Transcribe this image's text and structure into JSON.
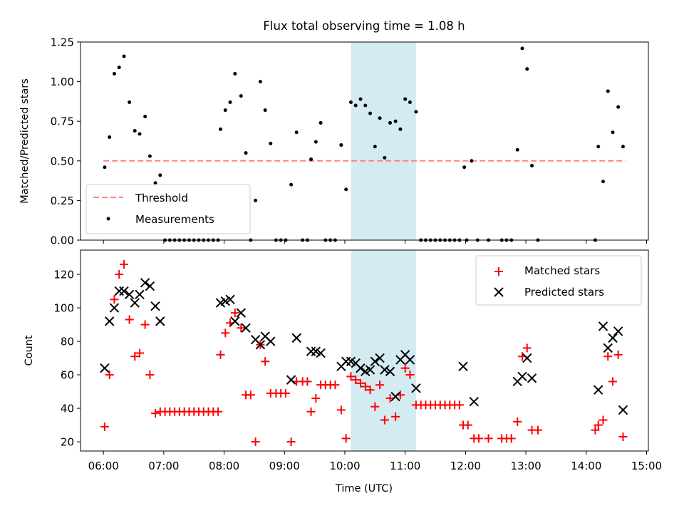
{
  "chart_data": [
    {
      "type": "scatter",
      "title": "Flux total observing time = 1.08 h",
      "xlabel": "",
      "ylabel": "Matched/Predicted stars",
      "xlim_hours": [
        5.62,
        15.03
      ],
      "ylim": [
        0,
        1.25
      ],
      "yticks": [
        0.0,
        0.25,
        0.5,
        0.75,
        1.0,
        1.25
      ],
      "ytick_labels": [
        "0.00",
        "0.25",
        "0.50",
        "0.75",
        "1.00",
        "1.25"
      ],
      "shaded_span_hours": [
        10.1,
        11.18
      ],
      "grid": false,
      "legend_position": "lower-left",
      "threshold": {
        "name": "Threshold",
        "color": "#ff8080",
        "value": 0.5,
        "x_hours": [
          6.0,
          14.65
        ]
      },
      "series": [
        {
          "name": "Measurements",
          "color": "#000000",
          "marker": "dot",
          "points": [
            [
              6.02,
              0.46
            ],
            [
              6.1,
              0.65
            ],
            [
              6.18,
              1.05
            ],
            [
              6.26,
              1.09
            ],
            [
              6.34,
              1.16
            ],
            [
              6.43,
              0.87
            ],
            [
              6.52,
              0.69
            ],
            [
              6.6,
              0.67
            ],
            [
              6.69,
              0.78
            ],
            [
              6.77,
              0.53
            ],
            [
              6.86,
              0.36
            ],
            [
              6.94,
              0.41
            ],
            [
              7.02,
              0.0
            ],
            [
              7.1,
              0.0
            ],
            [
              7.18,
              0.0
            ],
            [
              7.26,
              0.0
            ],
            [
              7.34,
              0.0
            ],
            [
              7.42,
              0.0
            ],
            [
              7.5,
              0.0
            ],
            [
              7.58,
              0.0
            ],
            [
              7.66,
              0.0
            ],
            [
              7.74,
              0.0
            ],
            [
              7.82,
              0.0
            ],
            [
              7.9,
              0.0
            ],
            [
              7.94,
              0.7
            ],
            [
              8.02,
              0.82
            ],
            [
              8.1,
              0.87
            ],
            [
              8.18,
              1.05
            ],
            [
              8.28,
              0.91
            ],
            [
              8.36,
              0.55
            ],
            [
              8.44,
              0.0
            ],
            [
              8.52,
              0.25
            ],
            [
              8.6,
              1.0
            ],
            [
              8.68,
              0.82
            ],
            [
              8.77,
              0.61
            ],
            [
              8.86,
              0.0
            ],
            [
              8.94,
              0.0
            ],
            [
              9.02,
              0.0
            ],
            [
              9.11,
              0.35
            ],
            [
              9.2,
              0.68
            ],
            [
              9.3,
              0.0
            ],
            [
              9.38,
              0.0
            ],
            [
              9.44,
              0.51
            ],
            [
              9.52,
              0.62
            ],
            [
              9.6,
              0.74
            ],
            [
              9.68,
              0.0
            ],
            [
              9.76,
              0.0
            ],
            [
              9.84,
              0.0
            ],
            [
              9.94,
              0.6
            ],
            [
              10.02,
              0.32
            ],
            [
              10.1,
              0.87
            ],
            [
              10.18,
              0.85
            ],
            [
              10.26,
              0.89
            ],
            [
              10.34,
              0.85
            ],
            [
              10.42,
              0.8
            ],
            [
              10.5,
              0.59
            ],
            [
              10.58,
              0.77
            ],
            [
              10.66,
              0.52
            ],
            [
              10.75,
              0.74
            ],
            [
              10.84,
              0.75
            ],
            [
              10.92,
              0.7
            ],
            [
              11.0,
              0.89
            ],
            [
              11.08,
              0.87
            ],
            [
              11.18,
              0.81
            ],
            [
              11.26,
              0.0
            ],
            [
              11.34,
              0.0
            ],
            [
              11.42,
              0.0
            ],
            [
              11.5,
              0.0
            ],
            [
              11.58,
              0.0
            ],
            [
              11.66,
              0.0
            ],
            [
              11.74,
              0.0
            ],
            [
              11.82,
              0.0
            ],
            [
              11.9,
              0.0
            ],
            [
              11.98,
              0.46
            ],
            [
              12.02,
              0.0
            ],
            [
              12.1,
              0.5
            ],
            [
              12.2,
              0.0
            ],
            [
              12.38,
              0.0
            ],
            [
              12.6,
              0.0
            ],
            [
              12.68,
              0.0
            ],
            [
              12.76,
              0.0
            ],
            [
              12.86,
              0.57
            ],
            [
              12.94,
              1.21
            ],
            [
              13.02,
              1.08
            ],
            [
              13.1,
              0.47
            ],
            [
              13.2,
              0.0
            ],
            [
              14.15,
              0.0
            ],
            [
              14.2,
              0.59
            ],
            [
              14.28,
              0.37
            ],
            [
              14.36,
              0.94
            ],
            [
              14.44,
              0.68
            ],
            [
              14.53,
              0.84
            ],
            [
              14.61,
              0.59
            ]
          ]
        }
      ]
    },
    {
      "type": "scatter",
      "title": "",
      "xlabel": "Time (UTC)",
      "ylabel": "Count",
      "xlim_hours": [
        5.62,
        15.03
      ],
      "ylim": [
        14.5,
        134.5
      ],
      "yticks": [
        20,
        40,
        60,
        80,
        100,
        120
      ],
      "ytick_labels": [
        "20",
        "40",
        "60",
        "80",
        "100",
        "120"
      ],
      "xticks_hours": [
        6,
        7,
        8,
        9,
        10,
        11,
        12,
        13,
        14,
        15
      ],
      "xtick_labels": [
        "06:00",
        "07:00",
        "08:00",
        "09:00",
        "10:00",
        "11:00",
        "12:00",
        "13:00",
        "14:00",
        "15:00"
      ],
      "shaded_span_hours": [
        10.1,
        11.18
      ],
      "grid": false,
      "legend_position": "upper-right",
      "series": [
        {
          "name": "Matched stars",
          "color": "#ff0000",
          "marker": "plus",
          "points": [
            [
              6.02,
              29
            ],
            [
              6.1,
              60
            ],
            [
              6.18,
              105
            ],
            [
              6.26,
              120
            ],
            [
              6.34,
              126
            ],
            [
              6.43,
              93
            ],
            [
              6.52,
              71
            ],
            [
              6.6,
              73
            ],
            [
              6.69,
              90
            ],
            [
              6.77,
              60
            ],
            [
              6.86,
              37
            ],
            [
              6.94,
              38
            ],
            [
              7.02,
              38
            ],
            [
              7.1,
              38
            ],
            [
              7.18,
              38
            ],
            [
              7.26,
              38
            ],
            [
              7.34,
              38
            ],
            [
              7.42,
              38
            ],
            [
              7.5,
              38
            ],
            [
              7.58,
              38
            ],
            [
              7.66,
              38
            ],
            [
              7.74,
              38
            ],
            [
              7.82,
              38
            ],
            [
              7.9,
              38
            ],
            [
              7.94,
              72
            ],
            [
              8.02,
              85
            ],
            [
              8.1,
              91
            ],
            [
              8.18,
              97
            ],
            [
              8.28,
              88
            ],
            [
              8.36,
              48
            ],
            [
              8.44,
              48
            ],
            [
              8.52,
              20
            ],
            [
              8.6,
              78
            ],
            [
              8.68,
              68
            ],
            [
              8.77,
              49
            ],
            [
              8.86,
              49
            ],
            [
              8.94,
              49
            ],
            [
              9.02,
              49
            ],
            [
              9.11,
              20
            ],
            [
              9.2,
              56
            ],
            [
              9.3,
              56
            ],
            [
              9.38,
              56
            ],
            [
              9.44,
              38
            ],
            [
              9.52,
              46
            ],
            [
              9.6,
              54
            ],
            [
              9.68,
              54
            ],
            [
              9.76,
              54
            ],
            [
              9.84,
              54
            ],
            [
              9.94,
              39
            ],
            [
              10.02,
              22
            ],
            [
              10.1,
              59
            ],
            [
              10.18,
              57
            ],
            [
              10.26,
              55
            ],
            [
              10.34,
              53
            ],
            [
              10.42,
              51
            ],
            [
              10.5,
              41
            ],
            [
              10.58,
              54
            ],
            [
              10.66,
              33
            ],
            [
              10.75,
              46
            ],
            [
              10.84,
              35
            ],
            [
              10.92,
              48
            ],
            [
              11.0,
              64
            ],
            [
              11.08,
              60
            ],
            [
              11.18,
              42
            ],
            [
              11.26,
              42
            ],
            [
              11.34,
              42
            ],
            [
              11.42,
              42
            ],
            [
              11.5,
              42
            ],
            [
              11.58,
              42
            ],
            [
              11.66,
              42
            ],
            [
              11.74,
              42
            ],
            [
              11.82,
              42
            ],
            [
              11.9,
              42
            ],
            [
              11.96,
              30
            ],
            [
              12.04,
              30
            ],
            [
              12.14,
              22
            ],
            [
              12.22,
              22
            ],
            [
              12.38,
              22
            ],
            [
              12.6,
              22
            ],
            [
              12.68,
              22
            ],
            [
              12.76,
              22
            ],
            [
              12.86,
              32
            ],
            [
              12.94,
              71
            ],
            [
              13.02,
              76
            ],
            [
              13.1,
              27
            ],
            [
              13.2,
              27
            ],
            [
              14.15,
              27
            ],
            [
              14.2,
              30
            ],
            [
              14.28,
              33
            ],
            [
              14.36,
              71
            ],
            [
              14.44,
              56
            ],
            [
              14.53,
              72
            ],
            [
              14.61,
              23
            ]
          ]
        },
        {
          "name": "Predicted stars",
          "color": "#000000",
          "marker": "x",
          "points": [
            [
              6.02,
              64
            ],
            [
              6.1,
              92
            ],
            [
              6.18,
              100
            ],
            [
              6.26,
              110
            ],
            [
              6.34,
              110
            ],
            [
              6.43,
              108
            ],
            [
              6.52,
              103
            ],
            [
              6.6,
              108
            ],
            [
              6.69,
              115
            ],
            [
              6.77,
              113
            ],
            [
              6.86,
              101
            ],
            [
              6.94,
              92
            ],
            [
              7.94,
              103
            ],
            [
              8.02,
              104
            ],
            [
              8.1,
              105
            ],
            [
              8.18,
              92
            ],
            [
              8.28,
              97
            ],
            [
              8.36,
              88
            ],
            [
              8.52,
              81
            ],
            [
              8.6,
              78
            ],
            [
              8.68,
              83
            ],
            [
              8.77,
              80
            ],
            [
              9.11,
              57
            ],
            [
              9.2,
              82
            ],
            [
              9.44,
              74
            ],
            [
              9.52,
              74
            ],
            [
              9.6,
              73
            ],
            [
              9.94,
              65
            ],
            [
              10.02,
              68
            ],
            [
              10.1,
              68
            ],
            [
              10.18,
              67
            ],
            [
              10.26,
              64
            ],
            [
              10.34,
              62
            ],
            [
              10.42,
              63
            ],
            [
              10.5,
              68
            ],
            [
              10.58,
              70
            ],
            [
              10.66,
              63
            ],
            [
              10.75,
              62
            ],
            [
              10.84,
              47
            ],
            [
              10.92,
              69
            ],
            [
              11.0,
              72
            ],
            [
              11.08,
              69
            ],
            [
              11.18,
              52
            ],
            [
              11.96,
              65
            ],
            [
              12.14,
              44
            ],
            [
              12.86,
              56
            ],
            [
              12.94,
              59
            ],
            [
              13.02,
              70
            ],
            [
              13.1,
              58
            ],
            [
              14.2,
              51
            ],
            [
              14.28,
              89
            ],
            [
              14.36,
              76
            ],
            [
              14.44,
              82
            ],
            [
              14.53,
              86
            ],
            [
              14.61,
              39
            ]
          ]
        }
      ]
    }
  ]
}
